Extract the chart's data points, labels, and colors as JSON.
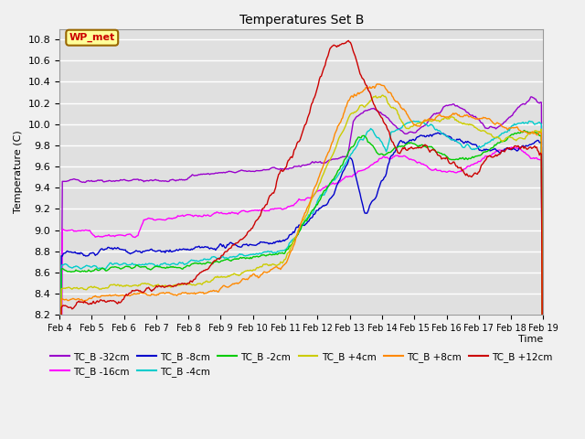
{
  "title": "Temperatures Set B",
  "xlabel": "Time",
  "ylabel": "Temperature (C)",
  "ylim": [
    8.2,
    10.9
  ],
  "series": [
    {
      "label": "TC_B -32cm",
      "color": "#9900CC"
    },
    {
      "label": "TC_B -16cm",
      "color": "#FF00FF"
    },
    {
      "label": "TC_B -8cm",
      "color": "#0000CC"
    },
    {
      "label": "TC_B -4cm",
      "color": "#00CCCC"
    },
    {
      "label": "TC_B -2cm",
      "color": "#00CC00"
    },
    {
      "label": "TC_B +4cm",
      "color": "#CCCC00"
    },
    {
      "label": "TC_B +8cm",
      "color": "#FF8800"
    },
    {
      "label": "TC_B +12cm",
      "color": "#CC0000"
    }
  ],
  "x_tick_labels": [
    "Feb 4",
    "Feb 5",
    "Feb 6",
    "Feb 7",
    "Feb 8",
    "Feb 9",
    "Feb 10",
    "Feb 11",
    "Feb 12",
    "Feb 13",
    "Feb 14",
    "Feb 15",
    "Feb 16",
    "Feb 17",
    "Feb 18",
    "Feb 19"
  ],
  "wp_met_box_color": "#FFFF99",
  "wp_met_text_color": "#CC0000",
  "wp_met_edge_color": "#996600",
  "background_color": "#E0E0E0",
  "fig_background": "#F0F0F0",
  "grid_color": "#FFFFFF",
  "n_points": 500
}
